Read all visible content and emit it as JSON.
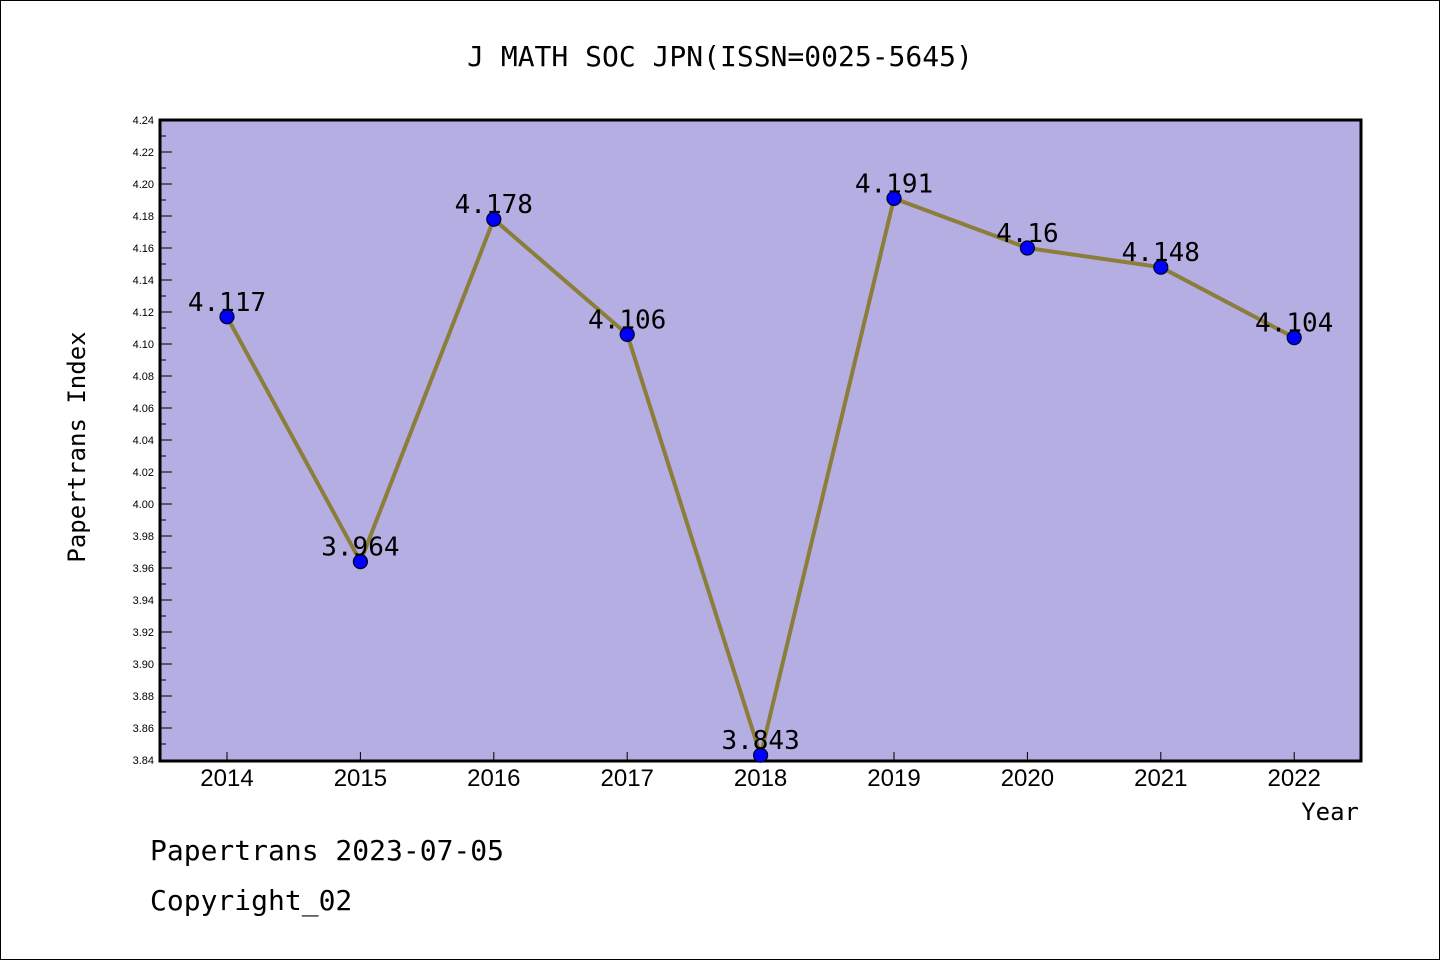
{
  "chart_data": {
    "type": "line",
    "title": "J MATH SOC JPN(ISSN=0025-5645)",
    "xlabel": "Year",
    "ylabel": "Papertrans Index",
    "categories": [
      "2014",
      "2015",
      "2016",
      "2017",
      "2018",
      "2019",
      "2020",
      "2021",
      "2022"
    ],
    "series": [
      {
        "values": [
          4.117,
          3.964,
          4.178,
          4.106,
          3.843,
          4.191,
          4.16,
          4.148,
          4.104
        ],
        "data_labels": [
          "4.117",
          "3.964",
          "4.178",
          "4.106",
          "3.843",
          "4.191",
          "4.16",
          "4.148",
          "4.104"
        ]
      }
    ],
    "ylim": [
      3.84,
      4.24
    ],
    "y_ticks": [
      "3.84",
      "3.86",
      "3.88",
      "3.90",
      "3.92",
      "3.94",
      "3.96",
      "3.98",
      "4.00",
      "4.02",
      "4.04",
      "4.06",
      "4.08",
      "4.10",
      "4.12",
      "4.14",
      "4.16",
      "4.18",
      "4.20",
      "4.22",
      "4.24"
    ],
    "grid": false,
    "legend": "none",
    "colors": {
      "plot_background": "#b4aee2",
      "line": "#8b7d3a",
      "marker": "#0000ff"
    }
  },
  "footer": {
    "date_line": "Papertrans 2023-07-05",
    "copyright_line": "Copyright_02"
  }
}
